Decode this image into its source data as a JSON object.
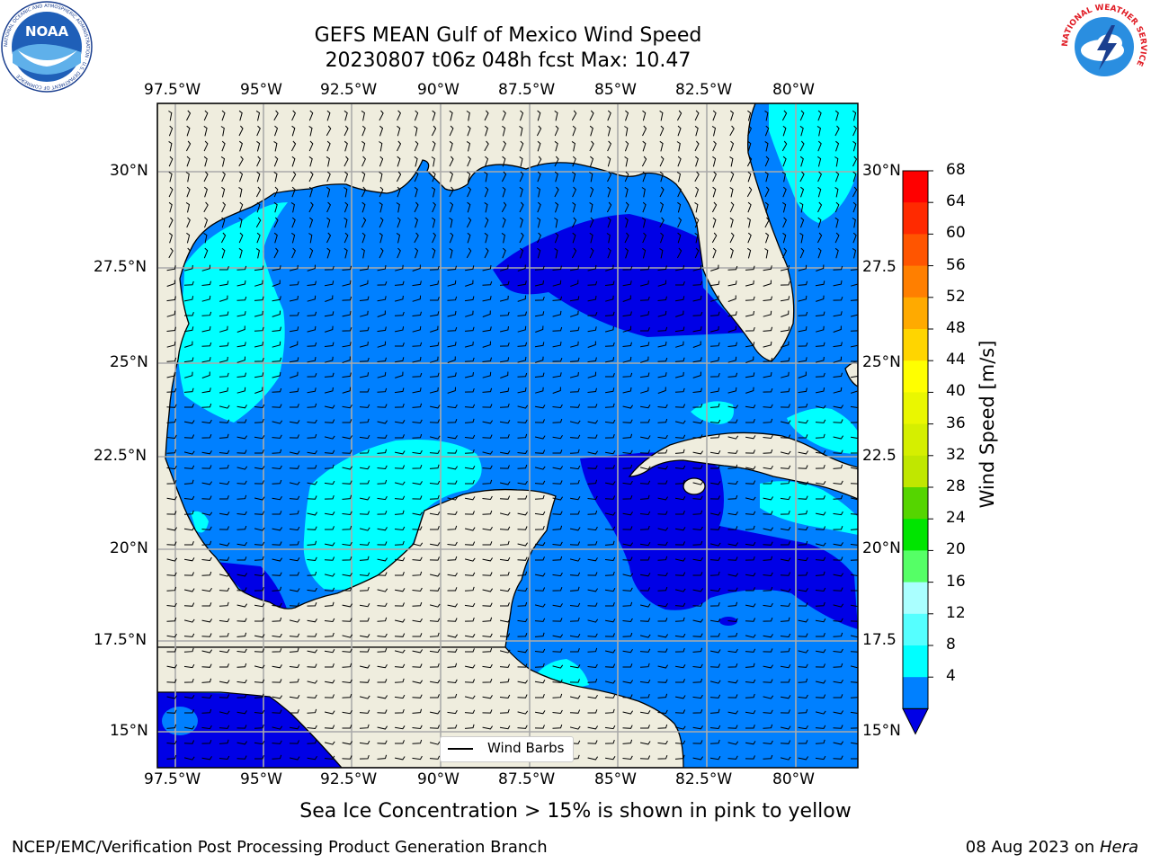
{
  "title": {
    "line1": "GEFS MEAN Gulf of Mexico Wind Speed",
    "line2": "20230807 t06z 048h fcst   Max: 10.47"
  },
  "map": {
    "lon_ticks": [
      "97.5°W",
      "95°W",
      "92.5°W",
      "90°W",
      "87.5°W",
      "85°W",
      "82.5°W",
      "80°W"
    ],
    "lat_ticks_left": [
      "30°N",
      "27.5°N",
      "25°N",
      "22.5°N",
      "20°N",
      "17.5°N",
      "15°N"
    ],
    "lat_ticks_right": [
      "30°N",
      "27.5",
      "25°N",
      "22.5",
      "20°N",
      "17.5",
      "15°N"
    ],
    "legend_label": "Wind Barbs",
    "colors": {
      "land": "#efedde",
      "ocean_4_8": "#0080ff",
      "ocean_0_4": "#0000e6",
      "ocean_8_12": "#00ffff",
      "grid": "#aaaaaa"
    }
  },
  "colorbar": {
    "title": "Wind Speed [m/s]",
    "ticks": [
      "68",
      "64",
      "60",
      "56",
      "52",
      "48",
      "44",
      "40",
      "36",
      "32",
      "28",
      "24",
      "20",
      "16",
      "12",
      "8",
      "4"
    ],
    "colors": [
      "#ff0000",
      "#ff2a00",
      "#ff5500",
      "#ff7f00",
      "#ffaa00",
      "#ffd500",
      "#ffff00",
      "#eaf700",
      "#d5ef00",
      "#c0e700",
      "#55d500",
      "#00e500",
      "#55ff66",
      "#aaffff",
      "#55ffff",
      "#00ffff",
      "#0080ff"
    ],
    "extend_color": "#0000e6"
  },
  "subtitle": "Sea Ice Concentration > 15% is shown in pink to yellow",
  "footer": {
    "left": "NCEP/EMC/Verification Post Processing Product Generation Branch",
    "right_date": "08 Aug 2023 on ",
    "right_host": "Hera"
  },
  "logos": {
    "noaa_text": "NOAA",
    "noaa_ring": "NATIONAL OCEANIC AND ATMOSPHERIC ADMINISTRATION · U.S. DEPARTMENT OF COMMERCE",
    "nws_ring": "NATIONAL WEATHER SERVICE"
  }
}
